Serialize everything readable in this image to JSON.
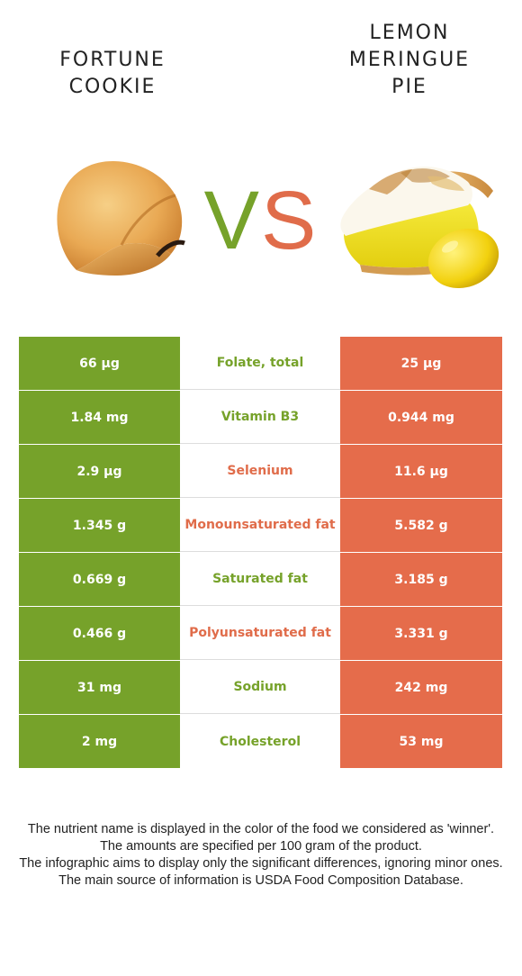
{
  "left_food": {
    "name_lines": [
      "FORTUNE",
      "COOKIE"
    ],
    "color": "#76a22a"
  },
  "right_food": {
    "name_lines": [
      "LEMON",
      "MERINGUE",
      "PIE"
    ],
    "color": "#e56c4b"
  },
  "vs": {
    "v": "V",
    "s": "S"
  },
  "rows": [
    {
      "left": "66 µg",
      "nutrient": "Folate, total",
      "right": "25 µg",
      "winner": "left"
    },
    {
      "left": "1.84 mg",
      "nutrient": "Vitamin B3",
      "right": "0.944 mg",
      "winner": "left"
    },
    {
      "left": "2.9 µg",
      "nutrient": "Selenium",
      "right": "11.6 µg",
      "winner": "right"
    },
    {
      "left": "1.345 g",
      "nutrient": "Monounsaturated fat",
      "right": "5.582 g",
      "winner": "right"
    },
    {
      "left": "0.669 g",
      "nutrient": "Saturated fat",
      "right": "3.185 g",
      "winner": "left"
    },
    {
      "left": "0.466 g",
      "nutrient": "Polyunsaturated fat",
      "right": "3.331 g",
      "winner": "right"
    },
    {
      "left": "31 mg",
      "nutrient": "Sodium",
      "right": "242 mg",
      "winner": "left"
    },
    {
      "left": "2 mg",
      "nutrient": "Cholesterol",
      "right": "53 mg",
      "winner": "left"
    }
  ],
  "notes": [
    "The nutrient name is displayed in the color of the food we considered as 'winner'.",
    "The amounts are specified per 100 gram of the product.",
    "The infographic aims to display only the significant differences, ignoring minor ones.",
    "The main source of information is USDA Food Composition Database."
  ]
}
